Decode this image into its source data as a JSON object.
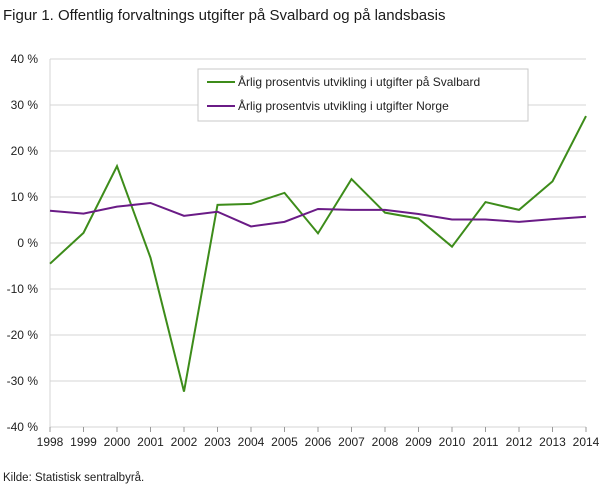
{
  "title": "Figur 1. Offentlig forvaltnings utgifter på Svalbard og på landsbasis",
  "source": "Kilde: Statistisk sentralbyrå.",
  "chart_data": {
    "type": "line",
    "x": [
      "1998",
      "1999",
      "2000",
      "2001",
      "2002",
      "2003",
      "2004",
      "2005",
      "2006",
      "2007",
      "2008",
      "2009",
      "2010",
      "2011",
      "2012",
      "2013",
      "2014"
    ],
    "yticks": [
      40,
      30,
      20,
      10,
      0,
      -10,
      -20,
      -30,
      -40
    ],
    "ytick_labels": [
      "40 %",
      "30 %",
      "20 %",
      "10 %",
      "0 %",
      "-10 %",
      "-20 %",
      "-30 %",
      "-40 %"
    ],
    "ylim": [
      -40,
      40
    ],
    "grid": "horizontal",
    "legend_position": "top-right",
    "series": [
      {
        "name": "Årlig prosentvis utvikling i utgifter på Svalbard",
        "color": "#3d8c1a",
        "values": [
          -4.5,
          2.2,
          16.7,
          -3.2,
          -32.3,
          8.3,
          8.5,
          10.9,
          2.1,
          13.9,
          6.6,
          5.3,
          -0.8,
          8.9,
          7.2,
          13.4,
          27.6
        ]
      },
      {
        "name": "Årlig prosentvis utvikling i utgifter Norge",
        "color": "#6a1b86",
        "values": [
          7.0,
          6.4,
          7.9,
          8.7,
          5.9,
          6.8,
          3.6,
          4.6,
          7.4,
          7.2,
          7.2,
          6.3,
          5.1,
          5.1,
          4.6,
          5.2,
          5.7
        ]
      }
    ]
  }
}
